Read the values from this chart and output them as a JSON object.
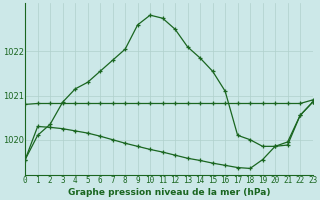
{
  "x": [
    0,
    1,
    2,
    3,
    4,
    5,
    6,
    7,
    8,
    9,
    10,
    11,
    12,
    13,
    14,
    15,
    16,
    17,
    18,
    19,
    20,
    21,
    22,
    23
  ],
  "line_main": [
    1019.55,
    1020.1,
    1020.35,
    1020.85,
    1021.15,
    1021.3,
    1021.55,
    1021.8,
    1022.05,
    1022.6,
    1022.82,
    1022.75,
    1022.5,
    1022.1,
    1021.85,
    1021.55,
    1021.1,
    1020.1,
    1020.0,
    1019.85,
    1019.85,
    1019.95,
    1020.55,
    1020.85
  ],
  "line_upper": [
    1020.8,
    1020.82,
    1020.82,
    1020.82,
    1020.82,
    1020.82,
    1020.82,
    1020.82,
    1020.82,
    1020.82,
    1020.82,
    1020.82,
    1020.82,
    1020.82,
    1020.82,
    1020.82,
    1020.82,
    1020.82,
    1020.82,
    1020.82,
    1020.82,
    1020.82,
    1020.82,
    1020.9
  ],
  "line_lower": [
    1019.55,
    1020.3,
    1020.28,
    1020.25,
    1020.2,
    1020.15,
    1020.08,
    1020.0,
    1019.92,
    1019.85,
    1019.78,
    1019.72,
    1019.65,
    1019.58,
    1019.53,
    1019.47,
    1019.42,
    1019.37,
    1019.35,
    1019.55,
    1019.85,
    1019.88,
    1020.55,
    1020.85
  ],
  "line_color": "#1a6620",
  "bg_color": "#cce8e8",
  "grid_color": "#b0d0cc",
  "ylabel_ticks": [
    1020,
    1021,
    1022
  ],
  "xlim": [
    0,
    23
  ],
  "ylim": [
    1019.2,
    1023.1
  ],
  "xlabel": "Graphe pression niveau de la mer (hPa)",
  "xtick_fontsize": 5.5,
  "ytick_fontsize": 6,
  "xlabel_fontsize": 6.5,
  "marker": "+"
}
